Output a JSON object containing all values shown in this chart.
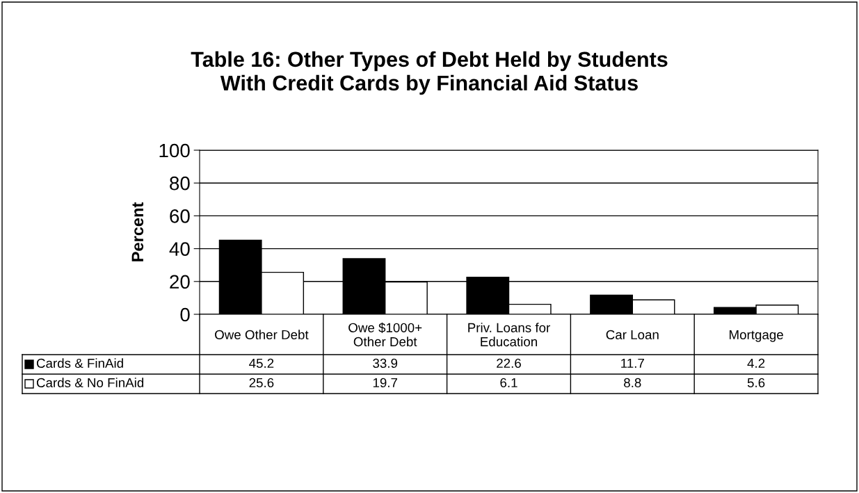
{
  "chart_data": {
    "type": "bar",
    "title": "Table 16: Other Types of Debt Held by Students\nWith Credit Cards by Financial Aid Status",
    "ylabel": "Percent",
    "categories": [
      "Owe Other Debt",
      "Owe $1000+\nOther Debt",
      "Priv. Loans for\nEducation",
      "Car Loan",
      "Mortgage"
    ],
    "series": [
      {
        "name": "Cards & FinAid",
        "color": "#000000",
        "values": [
          45.2,
          33.9,
          22.6,
          11.7,
          4.2
        ]
      },
      {
        "name": "Cards & No FinAid",
        "color": "#ffffff",
        "values": [
          25.6,
          19.7,
          6.1,
          8.8,
          5.6
        ]
      }
    ],
    "ylim": [
      0,
      100
    ],
    "yticks": [
      0,
      20,
      40,
      60,
      80,
      100
    ],
    "grid": "y",
    "data_labels": true,
    "legend": "bottom"
  }
}
